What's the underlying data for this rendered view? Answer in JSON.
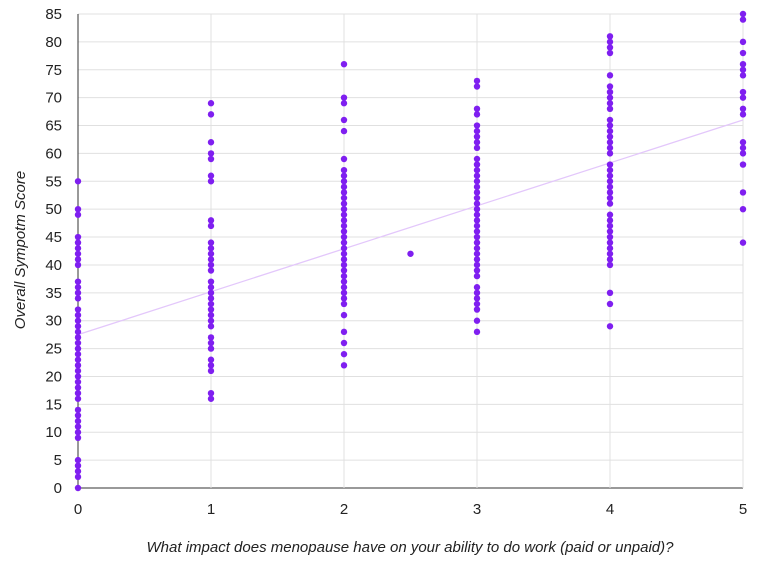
{
  "chart_data": {
    "type": "scatter",
    "title": "",
    "xlabel": "What impact does menopause have on your ability to do work (paid or unpaid)?",
    "ylabel": "Overall Sympotm Score",
    "xlim": [
      0,
      5
    ],
    "ylim": [
      0,
      85
    ],
    "xticks": [
      0,
      1,
      2,
      3,
      4,
      5
    ],
    "yticks": [
      0,
      5,
      10,
      15,
      20,
      25,
      30,
      35,
      40,
      45,
      50,
      55,
      60,
      65,
      70,
      75,
      80,
      85
    ],
    "grid": true,
    "point_color": "#7f1ff0",
    "trendline": {
      "color": "#e3c7fb",
      "x": [
        0,
        5
      ],
      "y": [
        27.5,
        66
      ]
    },
    "series": [
      {
        "x": 0,
        "y": [
          55,
          50,
          49,
          45,
          44,
          43,
          42,
          41,
          40,
          37,
          36,
          35,
          34,
          32,
          31,
          30,
          29,
          28,
          27,
          26,
          25,
          24,
          23,
          22,
          21,
          20,
          19,
          18,
          17,
          16,
          14,
          13,
          12,
          11,
          10,
          9,
          5,
          4,
          3,
          2,
          0
        ]
      },
      {
        "x": 1,
        "y": [
          69,
          67,
          62,
          60,
          59,
          56,
          55,
          48,
          47,
          44,
          43,
          42,
          41,
          40,
          39,
          37,
          36,
          35,
          34,
          33,
          32,
          31,
          30,
          29,
          27,
          26,
          25,
          23,
          22,
          21,
          17,
          16
        ]
      },
      {
        "x": 2,
        "y": [
          76,
          70,
          69,
          66,
          64,
          59,
          57,
          56,
          55,
          54,
          53,
          52,
          51,
          50,
          49,
          48,
          47,
          46,
          45,
          44,
          43,
          42,
          41,
          40,
          39,
          38,
          37,
          36,
          35,
          34,
          33,
          31,
          28,
          26,
          24,
          22
        ]
      },
      {
        "x": 2.5,
        "y": [
          42
        ]
      },
      {
        "x": 3,
        "y": [
          73,
          72,
          68,
          67,
          65,
          64,
          63,
          62,
          61,
          59,
          58,
          57,
          56,
          55,
          54,
          53,
          52,
          51,
          50,
          49,
          48,
          47,
          46,
          45,
          44,
          43,
          42,
          41,
          40,
          39,
          38,
          36,
          35,
          34,
          33,
          32,
          30,
          28
        ]
      },
      {
        "x": 4,
        "y": [
          81,
          80,
          79,
          78,
          74,
          72,
          71,
          70,
          69,
          68,
          66,
          65,
          64,
          63,
          62,
          61,
          60,
          58,
          57,
          56,
          55,
          54,
          53,
          52,
          51,
          49,
          48,
          47,
          46,
          45,
          44,
          43,
          42,
          41,
          40,
          35,
          33,
          29
        ]
      },
      {
        "x": 5,
        "y": [
          85,
          84,
          80,
          78,
          76,
          75,
          74,
          71,
          70,
          68,
          67,
          62,
          61,
          60,
          58,
          53,
          50,
          44
        ]
      }
    ]
  }
}
